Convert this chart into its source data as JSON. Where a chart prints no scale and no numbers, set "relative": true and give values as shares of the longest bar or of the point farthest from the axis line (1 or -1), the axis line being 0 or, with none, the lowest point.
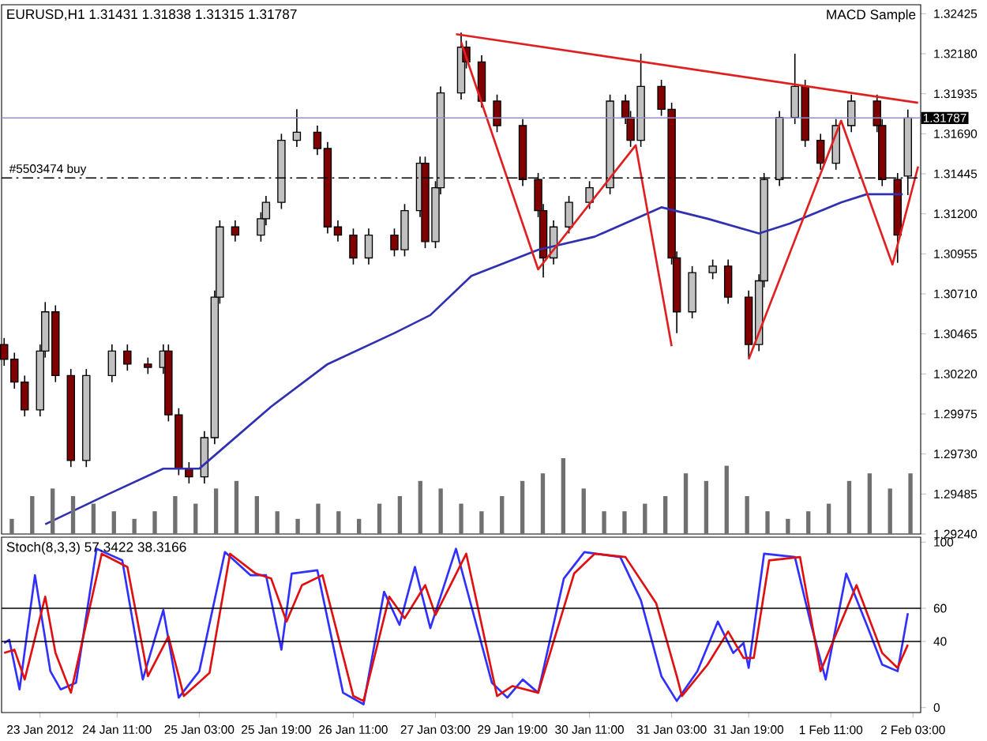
{
  "chart_data": [
    {
      "type": "candlestick",
      "title": "EURUSD,H1  1.31431 1.31838 1.31315 1.31787",
      "annotations": [
        "MACD Sample"
      ],
      "categories": [
        null,
        null,
        null,
        null,
        null,
        null,
        null,
        null,
        null,
        null,
        null,
        null,
        null,
        null,
        null,
        null,
        null,
        null,
        null,
        null,
        null,
        null,
        null,
        null,
        null,
        null,
        null,
        null,
        null,
        null,
        null,
        null,
        null,
        null,
        null,
        null,
        null,
        null,
        null,
        null,
        null,
        null,
        null,
        null,
        null,
        null,
        null,
        null,
        null,
        null,
        null,
        null,
        null,
        null,
        null,
        null,
        null,
        null,
        null,
        null,
        null,
        null,
        null,
        null,
        null,
        null,
        null,
        null,
        null,
        null,
        null,
        null,
        null,
        null,
        null,
        null,
        null,
        null,
        null,
        null,
        null,
        null,
        null,
        null,
        null,
        null,
        null,
        null,
        null,
        null,
        null,
        null,
        null,
        null,
        null,
        null,
        null,
        null,
        null,
        null,
        null,
        null,
        null,
        null,
        null,
        null,
        null,
        null,
        null,
        null,
        null,
        null,
        null,
        null,
        null,
        null,
        null,
        null,
        null,
        null,
        null,
        null,
        null,
        null,
        null,
        null,
        null,
        null,
        null,
        null,
        null,
        null,
        null,
        null,
        null,
        null,
        null,
        null,
        null,
        null,
        null,
        null,
        null,
        null,
        null,
        null,
        null,
        null,
        null,
        null,
        null,
        null,
        null,
        null,
        null,
        null,
        null,
        null,
        null,
        null,
        null,
        null,
        null,
        null,
        null,
        null,
        null,
        null,
        null,
        null,
        null,
        null,
        null,
        null,
        null,
        null,
        null,
        null,
        null
      ],
      "ohlc": [
        [
          1.304,
          1.3044,
          1.3027,
          1.3031
        ],
        null,
        [
          1.3031,
          1.3035,
          1.3013,
          1.3017
        ],
        null,
        [
          1.3017,
          1.3021,
          1.2996,
          1.3
        ],
        null,
        null,
        [
          1.3,
          1.304,
          1.2996,
          1.3036
        ],
        [
          1.3036,
          1.3066,
          1.3032,
          1.306
        ],
        null,
        [
          1.306,
          1.3064,
          1.3017,
          1.3021
        ],
        null,
        null,
        [
          1.3021,
          1.3025,
          1.2965,
          1.2969
        ],
        null,
        null,
        [
          1.2969,
          1.3025,
          1.2965,
          1.3021
        ],
        null,
        null,
        null,
        null,
        [
          1.3021,
          1.304,
          1.3017,
          1.3036
        ],
        null,
        null,
        [
          1.3036,
          1.304,
          1.3024,
          1.3028
        ],
        null,
        null,
        null,
        [
          1.3028,
          1.3032,
          1.3022,
          1.3026
        ],
        null,
        null,
        [
          1.3026,
          1.304,
          1.3022,
          1.3036
        ],
        [
          1.3036,
          1.304,
          1.2993,
          1.2997
        ],
        null,
        [
          1.2997,
          1.3001,
          1.296,
          1.2964
        ],
        null,
        [
          1.2964,
          1.2968,
          1.2955,
          1.2959
        ],
        null,
        null,
        [
          1.2959,
          1.2987,
          1.2955,
          1.2983
        ],
        null,
        [
          1.2983,
          1.3073,
          1.2979,
          1.3069
        ],
        [
          1.3069,
          1.3116,
          1.3065,
          1.3112
        ],
        null,
        null,
        [
          1.3112,
          1.3116,
          1.3103,
          1.3107
        ],
        null,
        null,
        null,
        null,
        [
          1.3107,
          1.3121,
          1.3103,
          1.3117
        ],
        [
          1.3117,
          1.3131,
          1.3113,
          1.3127
        ],
        null,
        null,
        [
          1.3127,
          1.3169,
          1.3123,
          1.3165
        ],
        null,
        null,
        [
          1.3165,
          1.3184,
          1.3161,
          1.317
        ],
        null,
        null,
        null,
        [
          1.317,
          1.3174,
          1.3156,
          1.316
        ],
        null,
        [
          1.316,
          1.3164,
          1.3108,
          1.3112
        ],
        null,
        [
          1.3112,
          1.3116,
          1.3103,
          1.3107
        ],
        null,
        null,
        [
          1.3107,
          1.3111,
          1.3089,
          1.3093
        ],
        null,
        null,
        [
          1.3093,
          1.3111,
          1.3089,
          1.3107
        ],
        null,
        null,
        null,
        null,
        [
          1.3107,
          1.3111,
          1.3094,
          1.3098
        ],
        null,
        [
          1.3098,
          1.3126,
          1.3094,
          1.3122
        ],
        null,
        null,
        [
          1.3122,
          1.3155,
          1.3118,
          1.3151
        ],
        [
          1.3151,
          1.3155,
          1.3099,
          1.3103
        ],
        null,
        [
          1.3103,
          1.314,
          1.3099,
          1.3136
        ],
        [
          1.3136,
          1.3198,
          1.3132,
          1.3194
        ],
        null,
        null,
        null,
        [
          1.3194,
          1.3231,
          1.319,
          1.3222
        ],
        [
          1.3222,
          1.3226,
          1.3209,
          1.3213
        ],
        null,
        null,
        [
          1.3213,
          1.3217,
          1.3185,
          1.3189
        ],
        null,
        null,
        [
          1.3189,
          1.3193,
          1.317,
          1.3174
        ],
        null,
        null,
        null,
        null,
        [
          1.3174,
          1.3178,
          1.3137,
          1.3141
        ],
        null,
        null,
        [
          1.3141,
          1.3145,
          1.3118,
          1.3122
        ],
        [
          1.3122,
          1.3126,
          1.3081,
          1.3093
        ],
        null,
        [
          1.3093,
          1.3116,
          1.3089,
          1.3112
        ],
        null,
        null,
        [
          1.3112,
          1.3131,
          1.3108,
          1.3127
        ],
        null,
        null,
        null,
        [
          1.3127,
          1.314,
          1.3123,
          1.3136
        ],
        null,
        null,
        null,
        [
          1.3136,
          1.3193,
          1.3132,
          1.3189
        ],
        null,
        null,
        [
          1.3189,
          1.3193,
          1.3175,
          1.3179
        ],
        [
          1.3179,
          1.3183,
          1.3161,
          1.3165
        ],
        null,
        [
          1.3165,
          1.3218,
          1.3161,
          1.3198
        ],
        null,
        null,
        null,
        [
          1.3198,
          1.3202,
          1.318,
          1.3184
        ],
        null,
        [
          1.3184,
          1.3188,
          1.3089,
          1.3093
        ],
        [
          1.3093,
          1.3097,
          1.3047,
          1.306
        ],
        null,
        null,
        [
          1.306,
          1.3088,
          1.3056,
          1.3084
        ],
        null,
        null,
        null,
        [
          1.3084,
          1.3092,
          1.308,
          1.3088
        ],
        null,
        null,
        [
          1.3088,
          1.3092,
          1.3065,
          1.3069
        ],
        null,
        null,
        null,
        [
          1.3069,
          1.3073,
          1.3032,
          1.304
        ],
        null,
        [
          1.304,
          1.3083,
          1.3036,
          1.3079
        ],
        [
          1.3079,
          1.3145,
          1.3075,
          1.3141
        ],
        null,
        null,
        [
          1.3141,
          1.3183,
          1.3137,
          1.3179
        ],
        null,
        null,
        [
          1.3179,
          1.3218,
          1.3175,
          1.3198
        ],
        null,
        [
          1.3198,
          1.3202,
          1.3161,
          1.3165
        ],
        null,
        null,
        [
          1.3165,
          1.3169,
          1.3147,
          1.3151
        ],
        null,
        null,
        [
          1.3151,
          1.3178,
          1.3147,
          1.3174
        ],
        null,
        null,
        [
          1.3174,
          1.3193,
          1.317,
          1.3189
        ],
        null,
        null,
        null,
        null,
        [
          1.3189,
          1.3193,
          1.317,
          1.3174
        ],
        [
          1.3174,
          1.3178,
          1.3137,
          1.3141
        ],
        null,
        null,
        [
          1.3141,
          1.3145,
          1.309,
          1.3107
        ],
        null,
        [
          1.31431,
          1.31838,
          1.31315,
          1.31787
        ],
        null,
        null
      ],
      "colors": [
        "#800000",
        null,
        "#800000",
        null,
        "#800000",
        null,
        null,
        "#c0c0c0",
        "#c0c0c0",
        null,
        "#800000",
        null,
        null,
        "#800000",
        null,
        null,
        "#c0c0c0",
        null,
        null,
        null,
        null,
        "#c0c0c0",
        null,
        null,
        "#800000",
        null,
        null,
        null,
        "#800000",
        null,
        null,
        "#c0c0c0",
        "#800000",
        null,
        "#800000",
        null,
        "#800000",
        null,
        null,
        "#c0c0c0",
        null,
        "#c0c0c0",
        "#c0c0c0",
        null,
        null,
        "#800000",
        null,
        null,
        null,
        null,
        "#c0c0c0",
        "#c0c0c0",
        null,
        null,
        "#c0c0c0",
        null,
        null,
        "#c0c0c0",
        null,
        null,
        null,
        "#800000",
        null,
        "#800000",
        null,
        "#800000",
        null,
        null,
        "#800000",
        null,
        null,
        "#c0c0c0",
        null,
        null,
        null,
        null,
        "#800000",
        null,
        "#c0c0c0",
        null,
        null,
        "#c0c0c0",
        "#800000",
        null,
        "#c0c0c0",
        "#c0c0c0",
        null,
        null,
        null,
        "#c0c0c0",
        "#800000",
        null,
        null,
        "#800000",
        null,
        null,
        "#800000",
        null,
        null,
        null,
        null,
        "#800000",
        null,
        null,
        "#800000",
        "#800000",
        null,
        "#c0c0c0",
        null,
        null,
        "#c0c0c0",
        null,
        null,
        null,
        "#c0c0c0",
        null,
        null,
        null,
        "#c0c0c0",
        null,
        null,
        "#800000",
        "#800000",
        null,
        "#c0c0c0",
        null,
        null,
        null,
        "#800000",
        null,
        "#800000",
        "#800000",
        null,
        null,
        "#c0c0c0",
        null,
        null,
        null,
        "#c0c0c0",
        null,
        null,
        "#800000",
        null,
        null,
        null,
        "#800000",
        null,
        "#c0c0c0",
        "#c0c0c0",
        null,
        null,
        "#c0c0c0",
        null,
        null,
        "#c0c0c0",
        null,
        "#800000",
        null,
        null,
        "#800000",
        null,
        null,
        "#c0c0c0",
        null,
        null,
        "#c0c0c0",
        null,
        null,
        null,
        null,
        "#800000",
        "#800000",
        null,
        null,
        "#800000",
        null,
        "#c0c0c0",
        null,
        null
      ],
      "series": [
        {
          "type": "line",
          "color": "#3030b0",
          "values": [
            null,
            null,
            null,
            null,
            null,
            null,
            null,
            null,
            1.293,
            null,
            null,
            null,
            null,
            null,
            null,
            null,
            null,
            null,
            null,
            null,
            1.2948,
            null,
            null,
            null,
            null,
            null,
            null,
            null,
            null,
            null,
            null,
            1.2964,
            null,
            null,
            null,
            null,
            null,
            null,
            1.2964,
            null,
            null,
            null,
            null,
            null,
            null,
            null,
            null,
            null,
            null,
            null,
            null,
            null,
            1.3002,
            null,
            null,
            null,
            null,
            null,
            null,
            null,
            null,
            null,
            null,
            1.3028,
            null,
            null,
            null,
            null,
            null,
            null,
            null,
            null,
            null,
            null,
            null,
            null,
            1.3047,
            null,
            null,
            null,
            null,
            null,
            null,
            1.3058,
            null,
            null,
            null,
            null,
            null,
            null,
            null,
            1.3082,
            null,
            null,
            null,
            null,
            null,
            null,
            null,
            null,
            null,
            null,
            null,
            null,
            1.3098,
            null,
            null,
            null,
            null,
            null,
            null,
            null,
            null,
            null,
            null,
            1.3106,
            null,
            null,
            null,
            null,
            null,
            null,
            null,
            null,
            null,
            null,
            null,
            null,
            1.3124,
            null,
            null,
            null,
            null,
            null,
            null,
            null,
            null,
            1.3117,
            null,
            null,
            null,
            null,
            null,
            null,
            null,
            null,
            null,
            1.3108,
            null,
            null,
            null,
            null,
            null,
            1.3114,
            null,
            null,
            null,
            null,
            null,
            null,
            null,
            null,
            null,
            1.3127,
            null,
            null,
            null,
            null,
            1.3132,
            null,
            null,
            null,
            null,
            null,
            null,
            1.3132,
            null,
            null,
            null
          ]
        },
        {
          "type": "line",
          "color": "#e02020",
          "values": [
            null,
            null,
            null,
            null,
            null,
            null,
            null,
            null,
            null,
            null,
            null,
            null,
            null,
            null,
            null,
            null,
            null,
            null,
            null,
            null,
            null,
            null,
            null,
            null,
            null,
            null,
            null,
            null,
            null,
            null,
            null,
            null,
            null,
            null,
            null,
            null,
            null,
            null,
            null,
            null,
            null,
            null,
            null,
            null,
            null,
            null,
            null,
            null,
            null,
            null,
            null,
            null,
            null,
            null,
            null,
            null,
            null,
            null,
            null,
            null,
            null,
            null,
            null,
            null,
            null,
            null,
            null,
            null,
            null,
            null,
            null,
            null,
            null,
            null,
            null,
            null,
            null,
            null,
            null,
            null,
            null,
            null,
            null,
            null,
            null,
            null,
            null,
            null,
            1.323,
            null,
            null,
            null,
            null,
            null,
            null,
            null,
            null,
            null,
            null,
            null,
            null,
            null,
            null,
            null,
            null,
            null,
            null,
            null,
            null,
            null,
            null,
            null,
            null,
            null,
            null,
            null,
            null,
            null,
            null,
            null,
            null,
            null,
            null,
            null,
            null,
            null,
            null,
            null,
            null,
            null,
            null,
            null,
            null,
            null,
            null,
            null,
            null,
            null,
            null,
            null,
            null,
            null,
            null,
            null,
            null,
            null,
            null,
            null,
            null,
            null,
            null,
            null,
            null,
            null,
            null,
            null,
            null,
            null,
            null,
            null,
            null,
            null,
            null,
            null,
            null,
            null,
            null,
            null,
            null,
            null,
            null,
            null,
            null,
            null,
            null,
            null,
            null,
            null,
            1.3188
          ]
        },
        {
          "type": "line",
          "color": "#e02020",
          "values": [
            null,
            null,
            null,
            null,
            null,
            null,
            null,
            null,
            null,
            null,
            null,
            null,
            null,
            null,
            null,
            null,
            null,
            null,
            null,
            null,
            null,
            null,
            null,
            null,
            null,
            null,
            null,
            null,
            null,
            null,
            null,
            null,
            null,
            null,
            null,
            null,
            null,
            null,
            null,
            null,
            null,
            null,
            null,
            null,
            null,
            null,
            null,
            null,
            null,
            null,
            null,
            null,
            null,
            null,
            null,
            null,
            null,
            null,
            null,
            null,
            null,
            null,
            null,
            null,
            null,
            null,
            null,
            null,
            null,
            null,
            null,
            null,
            null,
            null,
            null,
            null,
            null,
            null,
            null,
            null,
            null,
            null,
            null,
            null,
            null,
            null,
            null,
            null,
            null,
            1.3225,
            null,
            null,
            null,
            null,
            null,
            null,
            null,
            null,
            null,
            null,
            null,
            null,
            null,
            null,
            1.3086,
            null,
            null,
            null,
            null,
            null,
            null,
            null,
            null,
            null,
            null,
            null,
            null,
            null,
            null,
            null,
            null,
            null,
            null,
            1.3162,
            null,
            null,
            null,
            null,
            null,
            null,
            1.3039,
            null,
            null,
            null,
            null,
            null,
            null,
            null,
            null,
            null,
            null,
            null,
            null,
            null,
            null,
            null,
            null,
            null,
            null,
            null,
            null,
            null,
            null,
            null,
            null,
            null,
            null,
            null,
            null,
            null,
            null,
            null,
            null,
            null,
            null,
            null,
            null,
            null,
            null,
            null,
            null,
            null,
            null,
            null,
            null,
            null,
            null,
            null,
            null
          ]
        },
        {
          "type": "line",
          "color": "#e02020",
          "values": [
            null,
            null,
            null,
            null,
            null,
            null,
            null,
            null,
            null,
            null,
            null,
            null,
            null,
            null,
            null,
            null,
            null,
            null,
            null,
            null,
            null,
            null,
            null,
            null,
            null,
            null,
            null,
            null,
            null,
            null,
            null,
            null,
            null,
            null,
            null,
            null,
            null,
            null,
            null,
            null,
            null,
            null,
            null,
            null,
            null,
            null,
            null,
            null,
            null,
            null,
            null,
            null,
            null,
            null,
            null,
            null,
            null,
            null,
            null,
            null,
            null,
            null,
            null,
            null,
            null,
            null,
            null,
            null,
            null,
            null,
            null,
            null,
            null,
            null,
            null,
            null,
            null,
            null,
            null,
            null,
            null,
            null,
            null,
            null,
            null,
            null,
            null,
            null,
            null,
            null,
            null,
            null,
            null,
            null,
            null,
            null,
            null,
            null,
            null,
            null,
            null,
            null,
            null,
            null,
            null,
            null,
            null,
            null,
            null,
            null,
            null,
            null,
            null,
            null,
            null,
            null,
            null,
            null,
            null,
            null,
            null,
            null,
            null,
            null,
            null,
            null,
            null,
            null,
            null,
            null,
            null,
            null,
            null,
            null,
            null,
            null,
            null,
            null,
            null,
            null,
            null,
            null,
            null,
            null,
            null,
            1.3031,
            null,
            null,
            null,
            null,
            null,
            null,
            null,
            null,
            null,
            null,
            null,
            null,
            null,
            null,
            null,
            null,
            null,
            1.3177,
            null,
            null,
            null,
            null,
            null,
            null,
            null,
            null,
            null,
            1.3089,
            null,
            null,
            null,
            null,
            1.3149
          ]
        }
      ],
      "ylim": [
        1.2924,
        1.3248
      ],
      "yticks": [
        {
          "value": 1.2924,
          "label": "1.29240"
        },
        1.29485,
        {
          "value": 1.2973,
          "label": "1.29730"
        },
        1.29975,
        {
          "value": 1.3022,
          "label": "1.30220"
        },
        1.30465,
        {
          "value": 1.3071,
          "label": "1.30710"
        },
        1.30955,
        {
          "value": 1.312,
          "label": "1.31200"
        },
        1.31445,
        {
          "value": 1.3169,
          "label": "1.31690"
        },
        1.31935,
        {
          "value": 1.3218,
          "label": "1.32180"
        },
        1.32425
      ],
      "tick_labels": "y",
      "ref_lines": [
        {
          "axis": "y",
          "value": 1.31787,
          "label": "1.31787",
          "color": "#9090c8",
          "line_style": "solid"
        },
        {
          "axis": "y",
          "value": 1.3142,
          "label": "#5503474 buy",
          "color": "#000000",
          "line_style": "dashed"
        }
      ]
    },
    {
      "type": "bar",
      "relative": true,
      "color": "#707070",
      "tick_labels": false,
      "categories": [
        null,
        null,
        null,
        null,
        null,
        null,
        null,
        null,
        null,
        null,
        null,
        null,
        null,
        null,
        null,
        null,
        null,
        null,
        null,
        null,
        null,
        null,
        null,
        null,
        null,
        null,
        null,
        null,
        null,
        null,
        null,
        null,
        null,
        null,
        null,
        null,
        null,
        null,
        null,
        null,
        null,
        null,
        null,
        null,
        null
      ],
      "values": [
        0.2,
        0.5,
        0.6,
        0.5,
        0.4,
        0.3,
        0.2,
        0.3,
        0.5,
        0.4,
        0.6,
        0.7,
        0.5,
        0.3,
        0.2,
        0.4,
        0.3,
        0.2,
        0.4,
        0.5,
        0.7,
        0.6,
        0.4,
        0.3,
        0.5,
        0.7,
        0.8,
        1,
        0.6,
        0.3,
        0.3,
        0.4,
        0.5,
        0.8,
        0.7,
        0.9,
        0.5,
        0.3,
        0.2,
        0.3,
        0.4,
        0.7,
        0.8,
        0.6,
        0.8
      ]
    },
    {
      "type": "line",
      "title": "Stoch(8,3,3) 57.3422 38.3166",
      "categories": [
        null,
        null,
        null,
        null,
        null,
        null,
        null,
        "23 Jan 2012",
        null,
        null,
        null,
        null,
        null,
        null,
        null,
        null,
        null,
        null,
        null,
        null,
        null,
        null,
        "24 Jan 11:00",
        null,
        null,
        null,
        null,
        null,
        null,
        null,
        null,
        null,
        null,
        null,
        null,
        null,
        null,
        null,
        "25 Jan 03:00",
        null,
        null,
        null,
        null,
        null,
        null,
        null,
        null,
        null,
        null,
        null,
        null,
        null,
        null,
        "25 Jan 19:00",
        null,
        null,
        null,
        null,
        null,
        null,
        null,
        null,
        null,
        null,
        null,
        null,
        null,
        null,
        "26 Jan 11:00",
        null,
        null,
        null,
        null,
        null,
        null,
        null,
        null,
        null,
        null,
        null,
        null,
        null,
        null,
        null,
        "27 Jan 03:00",
        null,
        null,
        null,
        null,
        null,
        null,
        null,
        null,
        null,
        null,
        null,
        null,
        null,
        null,
        "29 Jan 19:00",
        null,
        null,
        null,
        null,
        null,
        null,
        null,
        null,
        null,
        null,
        null,
        null,
        null,
        null,
        "30 Jan 11:00",
        null,
        null,
        null,
        null,
        null,
        null,
        null,
        null,
        null,
        null,
        null,
        null,
        null,
        null,
        null,
        "31 Jan 03:00",
        null,
        null,
        null,
        null,
        null,
        null,
        null,
        null,
        null,
        null,
        null,
        null,
        null,
        null,
        "31 Jan 19:00",
        null,
        null,
        null,
        null,
        null,
        null,
        null,
        null,
        null,
        null,
        null,
        null,
        null,
        null,
        null,
        "1 Feb 11:00",
        null,
        null,
        null,
        null,
        null,
        null,
        null,
        null,
        null,
        null,
        null,
        null,
        null,
        null,
        null,
        "2 Feb 03:00",
        null
      ],
      "series": [
        {
          "color": "#3030ff",
          "values": [
            39,
            41,
            null,
            11,
            null,
            null,
            80,
            null,
            null,
            22,
            null,
            11,
            null,
            null,
            15,
            null,
            null,
            null,
            96,
            null,
            null,
            null,
            null,
            89,
            null,
            null,
            null,
            17,
            null,
            null,
            null,
            59,
            null,
            null,
            6,
            null,
            null,
            null,
            22,
            null,
            null,
            null,
            null,
            94,
            null,
            null,
            null,
            null,
            80,
            null,
            null,
            80,
            null,
            null,
            35,
            null,
            81,
            null,
            null,
            null,
            null,
            83,
            null,
            null,
            null,
            null,
            9,
            null,
            null,
            null,
            2,
            null,
            null,
            null,
            70,
            null,
            null,
            50,
            null,
            null,
            85,
            null,
            null,
            48,
            null,
            null,
            null,
            null,
            96,
            null,
            null,
            null,
            null,
            null,
            null,
            15,
            null,
            null,
            6,
            null,
            null,
            17,
            null,
            null,
            9,
            null,
            null,
            null,
            null,
            78,
            null,
            null,
            null,
            94,
            null,
            null,
            null,
            null,
            null,
            null,
            91,
            null,
            null,
            null,
            65,
            null,
            null,
            null,
            19,
            null,
            null,
            4,
            null,
            null,
            null,
            22,
            null,
            null,
            null,
            52,
            null,
            null,
            33,
            null,
            39,
            24,
            null,
            null,
            93,
            null,
            null,
            null,
            null,
            null,
            91,
            null,
            null,
            52,
            null,
            null,
            17,
            null,
            null,
            null,
            81,
            null,
            null,
            null,
            50,
            null,
            null,
            26,
            null,
            null,
            22,
            null,
            57,
            null,
            null
          ]
        },
        {
          "color": "#e01010",
          "values": [
            33,
            null,
            35,
            null,
            17,
            null,
            null,
            null,
            67,
            null,
            33,
            null,
            null,
            9,
            null,
            null,
            null,
            null,
            null,
            93,
            null,
            null,
            null,
            null,
            85,
            null,
            null,
            null,
            19,
            null,
            null,
            null,
            43,
            null,
            null,
            7,
            null,
            null,
            null,
            null,
            21,
            null,
            null,
            null,
            93,
            null,
            null,
            null,
            null,
            81,
            null,
            null,
            78,
            null,
            null,
            52,
            null,
            null,
            74,
            null,
            null,
            null,
            80,
            null,
            null,
            null,
            null,
            null,
            7,
            null,
            4,
            null,
            null,
            null,
            null,
            67,
            null,
            null,
            54,
            null,
            null,
            null,
            74,
            null,
            56,
            null,
            null,
            null,
            null,
            null,
            93,
            null,
            null,
            null,
            null,
            null,
            7,
            null,
            null,
            13,
            null,
            null,
            null,
            null,
            9,
            null,
            null,
            null,
            null,
            null,
            null,
            81,
            null,
            null,
            null,
            93,
            null,
            null,
            null,
            null,
            null,
            91,
            null,
            null,
            null,
            null,
            null,
            63,
            null,
            null,
            null,
            19,
            7,
            null,
            null,
            null,
            null,
            26,
            null,
            null,
            null,
            46,
            null,
            null,
            30,
            null,
            30,
            null,
            null,
            89,
            null,
            null,
            null,
            null,
            null,
            91,
            null,
            null,
            null,
            22,
            null,
            null,
            null,
            null,
            null,
            null,
            74,
            null,
            null,
            null,
            null,
            33,
            null,
            null,
            24,
            null,
            38,
            null,
            null
          ]
        }
      ],
      "ylim": [
        -3,
        103
      ],
      "yticks": [
        0,
        40,
        60,
        100
      ],
      "ref_lines": [
        {
          "axis": "y",
          "value": 40,
          "color": "#000000",
          "line_style": "solid"
        },
        {
          "axis": "y",
          "value": 60,
          "color": "#000000",
          "line_style": "solid"
        }
      ]
    }
  ]
}
